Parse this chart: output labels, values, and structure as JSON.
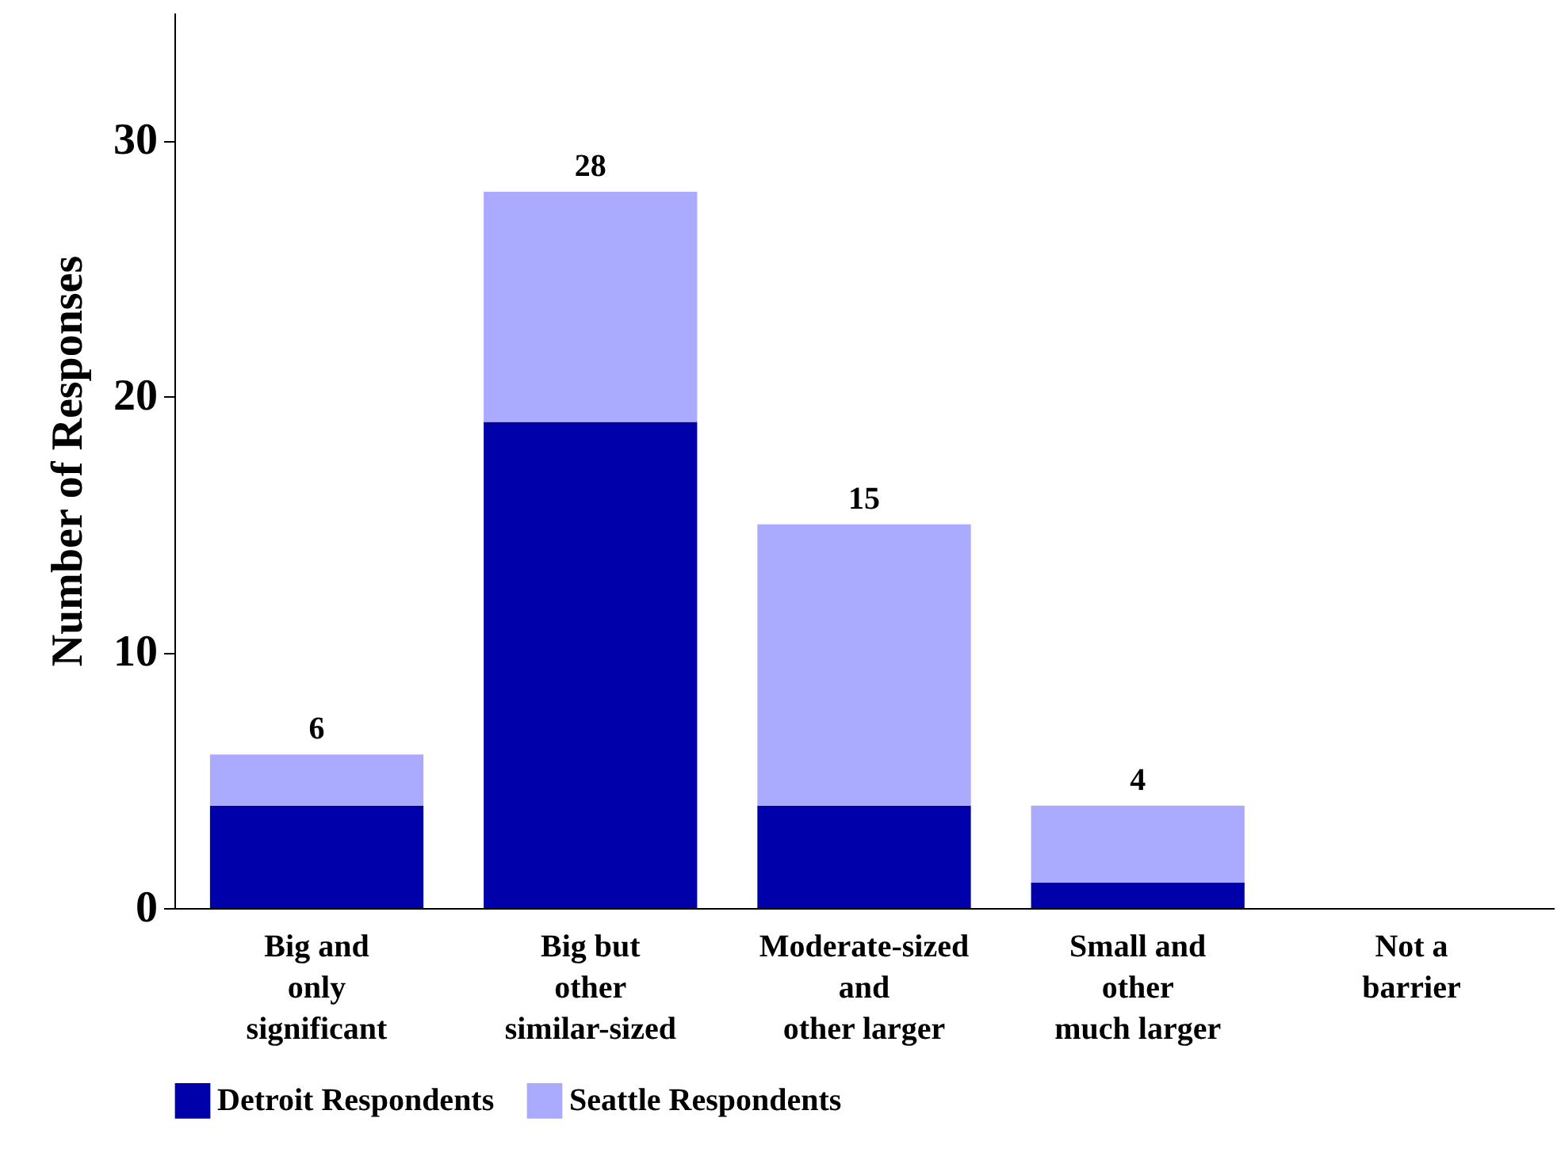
{
  "chart_data": {
    "type": "bar",
    "stacked": true,
    "ylabel": "Number of Responses",
    "categories": [
      "Big and\nonly\nsignificant",
      "Big but\nother\nsimilar-sized",
      "Moderate-sized\nand\nother larger",
      "Small and\nother\nmuch larger",
      "Not a\nbarrier"
    ],
    "series": [
      {
        "name": "Detroit Respondents",
        "color": "#0000aa",
        "values": [
          4,
          19,
          4,
          1,
          0
        ]
      },
      {
        "name": "Seattle Respondents",
        "color": "#aaaaff",
        "values": [
          2,
          9,
          11,
          3,
          0
        ]
      }
    ],
    "totals": [
      "6",
      "28",
      "15",
      "4",
      null
    ],
    "ylim": [
      0,
      35
    ],
    "yticks": [
      0,
      10,
      20,
      30
    ],
    "grid": false,
    "legend": "bottom"
  }
}
